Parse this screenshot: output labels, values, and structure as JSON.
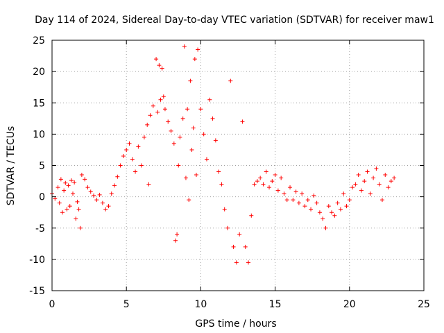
{
  "chart_data": {
    "type": "scatter",
    "title": "Day 114 of 2024, Sidereal Day-to-day VTEC variation (SDTVAR) for receiver maw1",
    "xlabel": "GPS time / hours",
    "ylabel": "SDTVAR / TECUs",
    "xlim": [
      0,
      25
    ],
    "ylim": [
      -15,
      25
    ],
    "xticks": [
      "0",
      "5",
      "10",
      "15",
      "20",
      "25"
    ],
    "yticks": [
      "25",
      "20",
      "15",
      "10",
      "5",
      "0",
      "-5",
      "-10",
      "-15"
    ],
    "grid": true,
    "marker": "+",
    "color": "#ff0000",
    "series": [
      {
        "name": "SDTVAR",
        "points": [
          [
            0.0,
            0.5
          ],
          [
            0.2,
            -0.3
          ],
          [
            0.4,
            1.5
          ],
          [
            0.5,
            -1.0
          ],
          [
            0.6,
            2.8
          ],
          [
            0.7,
            -2.5
          ],
          [
            0.8,
            1.0
          ],
          [
            0.9,
            2.2
          ],
          [
            1.0,
            -2.0
          ],
          [
            1.1,
            1.8
          ],
          [
            1.2,
            -1.5
          ],
          [
            1.3,
            2.6
          ],
          [
            1.4,
            0.5
          ],
          [
            1.5,
            2.3
          ],
          [
            1.6,
            -3.5
          ],
          [
            1.7,
            -0.8
          ],
          [
            1.8,
            -2.0
          ],
          [
            1.9,
            -5.0
          ],
          [
            2.0,
            3.5
          ],
          [
            2.2,
            2.8
          ],
          [
            2.4,
            1.5
          ],
          [
            2.6,
            0.8
          ],
          [
            2.8,
            0.2
          ],
          [
            3.0,
            -0.5
          ],
          [
            3.2,
            0.3
          ],
          [
            3.4,
            -1.0
          ],
          [
            3.6,
            -2.0
          ],
          [
            3.8,
            -1.5
          ],
          [
            4.0,
            0.5
          ],
          [
            4.2,
            1.8
          ],
          [
            4.4,
            3.2
          ],
          [
            4.6,
            5.0
          ],
          [
            4.8,
            6.5
          ],
          [
            5.0,
            7.5
          ],
          [
            5.2,
            8.5
          ],
          [
            5.4,
            6.0
          ],
          [
            5.6,
            4.0
          ],
          [
            5.8,
            8.0
          ],
          [
            6.0,
            5.0
          ],
          [
            6.2,
            9.5
          ],
          [
            6.4,
            11.5
          ],
          [
            6.5,
            2.0
          ],
          [
            6.6,
            13.0
          ],
          [
            6.8,
            14.5
          ],
          [
            7.0,
            22.0
          ],
          [
            7.1,
            13.5
          ],
          [
            7.2,
            21.0
          ],
          [
            7.3,
            15.5
          ],
          [
            7.4,
            20.5
          ],
          [
            7.5,
            16.0
          ],
          [
            7.6,
            14.0
          ],
          [
            7.8,
            12.0
          ],
          [
            8.0,
            10.5
          ],
          [
            8.2,
            8.5
          ],
          [
            8.3,
            -7.0
          ],
          [
            8.4,
            -6.0
          ],
          [
            8.5,
            5.0
          ],
          [
            8.6,
            9.5
          ],
          [
            8.8,
            12.5
          ],
          [
            8.9,
            24.0
          ],
          [
            9.0,
            3.0
          ],
          [
            9.1,
            14.0
          ],
          [
            9.2,
            -0.5
          ],
          [
            9.3,
            18.5
          ],
          [
            9.4,
            7.5
          ],
          [
            9.5,
            11.0
          ],
          [
            9.6,
            22.0
          ],
          [
            9.7,
            3.5
          ],
          [
            9.8,
            23.5
          ],
          [
            10.0,
            14.0
          ],
          [
            10.2,
            10.0
          ],
          [
            10.4,
            6.0
          ],
          [
            10.6,
            15.5
          ],
          [
            10.8,
            12.5
          ],
          [
            11.0,
            9.0
          ],
          [
            11.2,
            4.0
          ],
          [
            11.4,
            2.0
          ],
          [
            11.6,
            -2.0
          ],
          [
            11.8,
            -5.0
          ],
          [
            12.0,
            18.5
          ],
          [
            12.2,
            -8.0
          ],
          [
            12.4,
            -10.5
          ],
          [
            12.6,
            -6.0
          ],
          [
            12.8,
            12.0
          ],
          [
            13.0,
            -8.0
          ],
          [
            13.2,
            -10.5
          ],
          [
            13.4,
            -3.0
          ],
          [
            13.6,
            2.0
          ],
          [
            13.8,
            2.5
          ],
          [
            14.0,
            3.0
          ],
          [
            14.2,
            2.0
          ],
          [
            14.4,
            4.0
          ],
          [
            14.6,
            1.5
          ],
          [
            14.8,
            2.5
          ],
          [
            15.0,
            3.5
          ],
          [
            15.2,
            1.0
          ],
          [
            15.4,
            3.0
          ],
          [
            15.6,
            0.5
          ],
          [
            15.8,
            -0.5
          ],
          [
            16.0,
            1.5
          ],
          [
            16.2,
            -0.5
          ],
          [
            16.4,
            0.8
          ],
          [
            16.6,
            -1.0
          ],
          [
            16.8,
            0.5
          ],
          [
            17.0,
            -1.5
          ],
          [
            17.2,
            -0.5
          ],
          [
            17.4,
            -2.0
          ],
          [
            17.6,
            0.2
          ],
          [
            17.8,
            -1.0
          ],
          [
            18.0,
            -2.5
          ],
          [
            18.2,
            -3.5
          ],
          [
            18.4,
            -5.0
          ],
          [
            18.6,
            -1.5
          ],
          [
            18.8,
            -2.5
          ],
          [
            19.0,
            -3.0
          ],
          [
            19.2,
            -1.0
          ],
          [
            19.4,
            -2.0
          ],
          [
            19.6,
            0.5
          ],
          [
            19.8,
            -1.5
          ],
          [
            20.0,
            -0.5
          ],
          [
            20.2,
            1.5
          ],
          [
            20.4,
            2.0
          ],
          [
            20.6,
            3.5
          ],
          [
            20.8,
            1.0
          ],
          [
            21.0,
            2.5
          ],
          [
            21.2,
            4.0
          ],
          [
            21.4,
            0.5
          ],
          [
            21.6,
            3.0
          ],
          [
            21.8,
            4.5
          ],
          [
            22.0,
            2.0
          ],
          [
            22.2,
            -0.5
          ],
          [
            22.4,
            3.5
          ],
          [
            22.6,
            1.5
          ],
          [
            22.8,
            2.5
          ],
          [
            23.0,
            3.0
          ]
        ]
      }
    ]
  }
}
